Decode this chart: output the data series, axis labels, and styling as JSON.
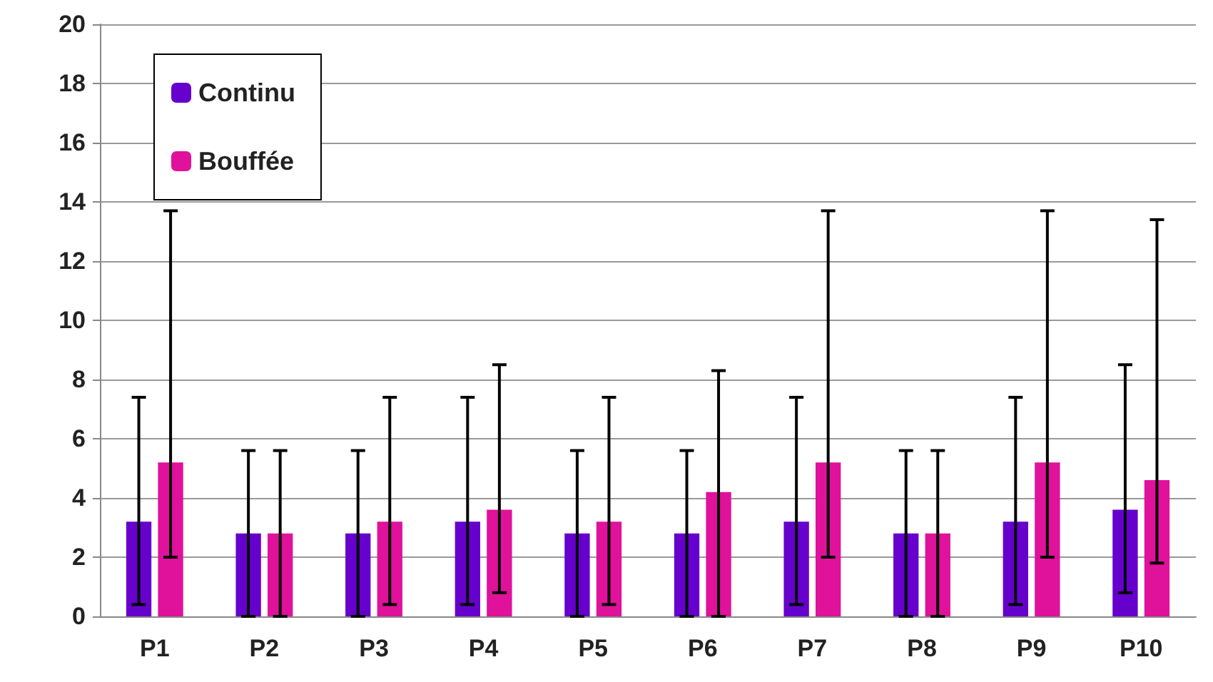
{
  "chart_data": {
    "type": "bar",
    "categories": [
      "P1",
      "P2",
      "P3",
      "P4",
      "P5",
      "P6",
      "P7",
      "P8",
      "P9",
      "P10"
    ],
    "series": [
      {
        "name": "Continu",
        "color": "#6600cc",
        "values": [
          3.2,
          2.8,
          2.8,
          3.2,
          2.8,
          2.8,
          3.2,
          2.8,
          3.2,
          3.6
        ],
        "errors": [
          [
            0.4,
            7.4
          ],
          [
            0,
            5.6
          ],
          [
            0,
            5.6
          ],
          [
            0.4,
            7.4
          ],
          [
            0,
            5.6
          ],
          [
            0,
            5.6
          ],
          [
            0.4,
            7.4
          ],
          [
            0,
            5.6
          ],
          [
            0.4,
            7.4
          ],
          [
            0.8,
            8.5
          ]
        ]
      },
      {
        "name": "Bouffée",
        "color": "#e0119b",
        "values": [
          5.2,
          2.8,
          3.2,
          3.6,
          3.2,
          4.2,
          5.2,
          2.8,
          5.2,
          4.6
        ],
        "errors": [
          [
            2,
            13.7
          ],
          [
            0,
            5.6
          ],
          [
            0.4,
            7.4
          ],
          [
            0.8,
            8.5
          ],
          [
            0.4,
            7.4
          ],
          [
            0,
            8.3
          ],
          [
            2,
            13.7
          ],
          [
            0,
            5.6
          ],
          [
            2,
            13.7
          ],
          [
            1.8,
            13.4
          ]
        ]
      }
    ],
    "ylim": [
      0,
      20
    ],
    "yticks": [
      0,
      2,
      4,
      6,
      8,
      10,
      12,
      14,
      16,
      18,
      20
    ],
    "grid": "y",
    "legend": "top left"
  }
}
